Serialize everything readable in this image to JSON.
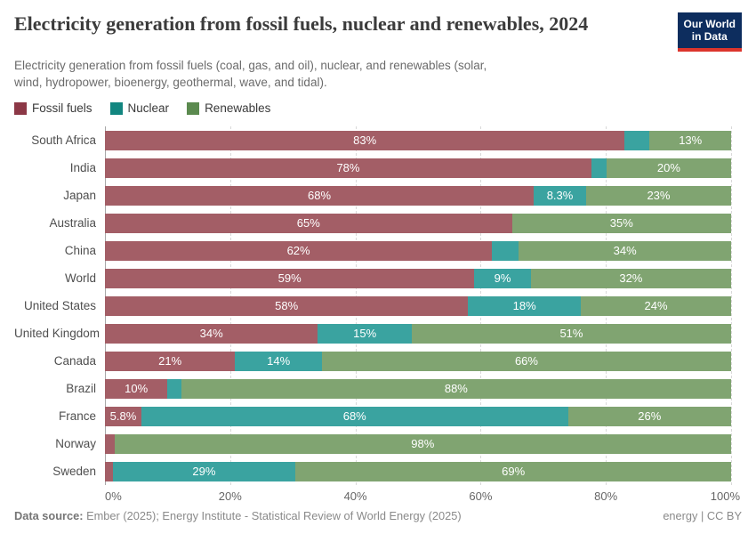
{
  "header": {
    "title": "Electricity generation from fossil fuels, nuclear and renewables, 2024",
    "subtitle": "Electricity generation from fossil fuels (coal, gas, and oil), nuclear, and renewables (solar, wind, hydropower, bioenergy, geothermal, wave, and tidal).",
    "logo": {
      "line1": "Our World",
      "line2": "in Data"
    }
  },
  "legend": {
    "items": [
      {
        "label": "Fossil fuels",
        "color": "#8C3846"
      },
      {
        "label": "Nuclear",
        "color": "#128680"
      },
      {
        "label": "Renewables",
        "color": "#5B8A4F"
      }
    ]
  },
  "colors": {
    "fossil_bar": "#A35E66",
    "nuclear_bar": "#3AA3A0",
    "renewables_bar": "#80A471",
    "axis_line": "#a8a8a8",
    "gridline": "#d9d9d9",
    "logo_bg": "#0d2d5e",
    "logo_stripe": "#dc352d"
  },
  "chart_data": {
    "type": "bar",
    "orientation": "horizontal",
    "stacked": true,
    "unit": "%",
    "xlim": [
      0,
      100
    ],
    "x_ticks": [
      "0%",
      "20%",
      "40%",
      "60%",
      "80%",
      "100%"
    ],
    "x_tick_values": [
      0,
      20,
      40,
      60,
      80,
      100
    ],
    "grid": true,
    "legend_position": "top",
    "categories": [
      "South Africa",
      "India",
      "Japan",
      "Australia",
      "China",
      "World",
      "United States",
      "United Kingdom",
      "Canada",
      "Brazil",
      "France",
      "Norway",
      "Sweden"
    ],
    "series": [
      {
        "name": "Fossil fuels",
        "values": [
          83,
          78,
          68,
          65,
          62,
          59,
          58,
          34,
          21,
          10,
          5.8,
          1.5,
          1.2
        ]
      },
      {
        "name": "Nuclear",
        "values": [
          4,
          2.4,
          8.3,
          0,
          4.3,
          9,
          18,
          15,
          14,
          2.2,
          68,
          0,
          29
        ]
      },
      {
        "name": "Renewables",
        "values": [
          13,
          20,
          23,
          35,
          34,
          32,
          24,
          51,
          66,
          88,
          26,
          98,
          69
        ]
      }
    ],
    "bar_labels": [
      [
        "83%",
        "",
        "13%"
      ],
      [
        "78%",
        "",
        "20%"
      ],
      [
        "68%",
        "8.3%",
        "23%"
      ],
      [
        "65%",
        "",
        "35%"
      ],
      [
        "62%",
        "",
        "34%"
      ],
      [
        "59%",
        "9%",
        "32%"
      ],
      [
        "58%",
        "18%",
        "24%"
      ],
      [
        "34%",
        "15%",
        "51%"
      ],
      [
        "21%",
        "14%",
        "66%"
      ],
      [
        "10%",
        "",
        "88%"
      ],
      [
        "5.8%",
        "68%",
        "26%"
      ],
      [
        "",
        "",
        "98%"
      ],
      [
        "",
        "29%",
        "69%"
      ]
    ]
  },
  "footer": {
    "source_label": "Data source:",
    "source_text": " Ember (2025); Energy Institute - Statistical Review of World Energy (2025)",
    "license": "energy | CC BY"
  }
}
